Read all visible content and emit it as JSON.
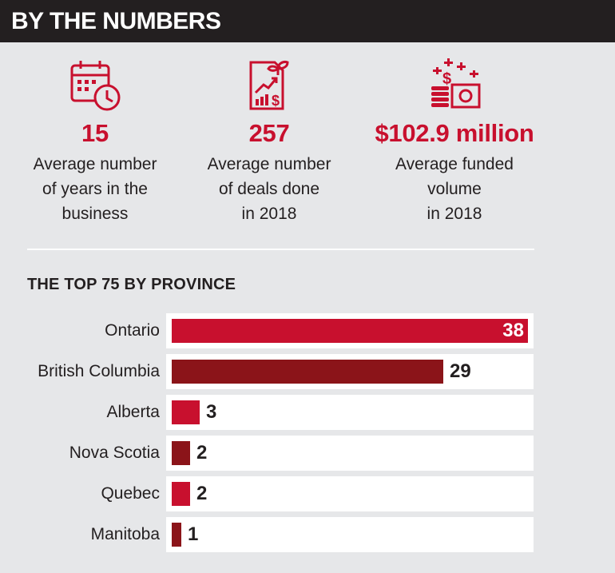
{
  "header": {
    "title": "BY THE NUMBERS"
  },
  "stats": [
    {
      "icon": "calendar-clock-icon",
      "value": "15",
      "label_lines": [
        "Average number",
        "of years in the",
        "business"
      ]
    },
    {
      "icon": "growth-document-icon",
      "value": "257",
      "label_lines": [
        "Average number",
        "of deals done",
        "in 2018"
      ]
    },
    {
      "icon": "money-stack-icon",
      "value": "$102.9 million",
      "label_lines": [
        "Average funded",
        "volume",
        "in 2018"
      ]
    }
  ],
  "colors": {
    "accent": "#c8102e",
    "dark_red": "#8b1419",
    "header_bg": "#231f20",
    "background": "#e6e7e9"
  },
  "chart_data": {
    "type": "bar",
    "orientation": "horizontal",
    "title": "THE TOP 75 BY PROVINCE",
    "categories": [
      "Ontario",
      "British Columbia",
      "Alberta",
      "Nova Scotia",
      "Quebec",
      "Manitoba"
    ],
    "values": [
      38,
      29,
      3,
      2,
      2,
      1
    ],
    "bar_colors": [
      "#c8102e",
      "#8b1419",
      "#c8102e",
      "#8b1419",
      "#c8102e",
      "#8b1419"
    ],
    "xlim": [
      0,
      38
    ],
    "grid": false
  }
}
